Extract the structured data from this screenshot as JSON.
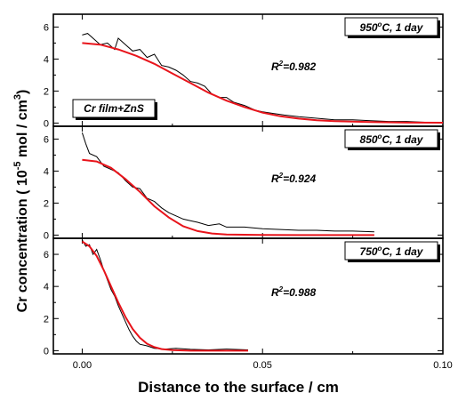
{
  "chart_data": {
    "type": "line",
    "xlabel": "Distance to the surface / cm",
    "ylabel": {
      "main": "Cr concentration  ( 10",
      "exp": "-5",
      "unit_mid": " mol / cm",
      "unit_exp": "3",
      "close": ")"
    },
    "xlim": [
      -0.008,
      0.1
    ],
    "xticks": [
      0.0,
      0.05,
      0.1
    ],
    "xtick_labels": [
      "0.00",
      "0.05",
      "0.10"
    ],
    "colors": {
      "data": "#000000",
      "fit": "#e8141b"
    },
    "panels": [
      {
        "label_main": "950",
        "label_sup": "o",
        "label_rest": "C, 1 day",
        "r2_r": "R",
        "r2_sup": "2",
        "r2_val": "=0.982",
        "note": "Cr film+ZnS",
        "ylim": [
          -0.2,
          6.8
        ],
        "yticks": [
          0,
          2,
          4,
          6
        ],
        "xmax_data": 0.1,
        "data": [
          [
            0.0,
            5.5
          ],
          [
            0.0015,
            5.6
          ],
          [
            0.003,
            5.3
          ],
          [
            0.005,
            4.9
          ],
          [
            0.007,
            5.0
          ],
          [
            0.009,
            4.6
          ],
          [
            0.01,
            5.3
          ],
          [
            0.012,
            4.9
          ],
          [
            0.014,
            4.5
          ],
          [
            0.016,
            4.6
          ],
          [
            0.018,
            4.1
          ],
          [
            0.02,
            4.3
          ],
          [
            0.022,
            3.6
          ],
          [
            0.024,
            3.5
          ],
          [
            0.026,
            3.3
          ],
          [
            0.028,
            3.0
          ],
          [
            0.03,
            2.6
          ],
          [
            0.032,
            2.5
          ],
          [
            0.034,
            2.3
          ],
          [
            0.036,
            1.8
          ],
          [
            0.038,
            1.6
          ],
          [
            0.04,
            1.6
          ],
          [
            0.042,
            1.3
          ],
          [
            0.045,
            1.1
          ],
          [
            0.048,
            0.8
          ],
          [
            0.05,
            0.7
          ],
          [
            0.053,
            0.6
          ],
          [
            0.056,
            0.5
          ],
          [
            0.06,
            0.4
          ],
          [
            0.065,
            0.3
          ],
          [
            0.07,
            0.2
          ],
          [
            0.075,
            0.2
          ],
          [
            0.08,
            0.15
          ],
          [
            0.085,
            0.1
          ],
          [
            0.09,
            0.1
          ],
          [
            0.095,
            0.05
          ],
          [
            0.1,
            0.05
          ]
        ],
        "fit": [
          [
            0.0,
            5.0
          ],
          [
            0.005,
            4.9
          ],
          [
            0.01,
            4.6
          ],
          [
            0.015,
            4.2
          ],
          [
            0.02,
            3.7
          ],
          [
            0.025,
            3.1
          ],
          [
            0.03,
            2.5
          ],
          [
            0.035,
            1.9
          ],
          [
            0.04,
            1.4
          ],
          [
            0.045,
            1.0
          ],
          [
            0.05,
            0.65
          ],
          [
            0.055,
            0.42
          ],
          [
            0.06,
            0.28
          ],
          [
            0.065,
            0.18
          ],
          [
            0.07,
            0.12
          ],
          [
            0.08,
            0.06
          ],
          [
            0.09,
            0.03
          ],
          [
            0.1,
            0.02
          ]
        ]
      },
      {
        "label_main": "850",
        "label_sup": "o",
        "label_rest": "C, 1 day",
        "r2_r": "R",
        "r2_sup": "2",
        "r2_val": "=0.924",
        "note": "",
        "ylim": [
          -0.2,
          6.8
        ],
        "yticks": [
          0,
          2,
          4,
          6
        ],
        "xmax_data": 0.081,
        "data": [
          [
            0.0,
            6.4
          ],
          [
            0.001,
            5.7
          ],
          [
            0.002,
            5.1
          ],
          [
            0.004,
            4.9
          ],
          [
            0.006,
            4.3
          ],
          [
            0.008,
            4.1
          ],
          [
            0.01,
            3.9
          ],
          [
            0.012,
            3.4
          ],
          [
            0.014,
            3.0
          ],
          [
            0.016,
            2.9
          ],
          [
            0.018,
            2.3
          ],
          [
            0.02,
            2.1
          ],
          [
            0.022,
            1.7
          ],
          [
            0.024,
            1.4
          ],
          [
            0.026,
            1.2
          ],
          [
            0.028,
            1.0
          ],
          [
            0.03,
            0.9
          ],
          [
            0.032,
            0.8
          ],
          [
            0.035,
            0.6
          ],
          [
            0.038,
            0.7
          ],
          [
            0.04,
            0.5
          ],
          [
            0.045,
            0.5
          ],
          [
            0.05,
            0.4
          ],
          [
            0.055,
            0.35
          ],
          [
            0.06,
            0.3
          ],
          [
            0.065,
            0.3
          ],
          [
            0.07,
            0.25
          ],
          [
            0.075,
            0.25
          ],
          [
            0.081,
            0.2
          ]
        ],
        "fit": [
          [
            0.0,
            4.7
          ],
          [
            0.004,
            4.6
          ],
          [
            0.008,
            4.2
          ],
          [
            0.012,
            3.5
          ],
          [
            0.016,
            2.7
          ],
          [
            0.02,
            1.8
          ],
          [
            0.024,
            1.1
          ],
          [
            0.028,
            0.55
          ],
          [
            0.032,
            0.25
          ],
          [
            0.036,
            0.1
          ],
          [
            0.04,
            0.04
          ],
          [
            0.05,
            0.01
          ],
          [
            0.06,
            0.0
          ],
          [
            0.081,
            0.0
          ]
        ]
      },
      {
        "label_main": "750",
        "label_sup": "o",
        "label_rest": "C, 1 day",
        "r2_r": "R",
        "r2_sup": "2",
        "r2_val": "=0.988",
        "note": "",
        "ylim": [
          -0.2,
          7.0
        ],
        "yticks": [
          0,
          2,
          4,
          6
        ],
        "xmax_data": 0.046,
        "data": [
          [
            0.0,
            6.9
          ],
          [
            0.001,
            6.5
          ],
          [
            0.002,
            6.6
          ],
          [
            0.003,
            6.0
          ],
          [
            0.004,
            6.3
          ],
          [
            0.005,
            5.7
          ],
          [
            0.006,
            5.0
          ],
          [
            0.007,
            4.4
          ],
          [
            0.008,
            3.8
          ],
          [
            0.009,
            3.4
          ],
          [
            0.01,
            2.8
          ],
          [
            0.011,
            2.3
          ],
          [
            0.012,
            1.8
          ],
          [
            0.013,
            1.3
          ],
          [
            0.014,
            0.9
          ],
          [
            0.015,
            0.6
          ],
          [
            0.016,
            0.4
          ],
          [
            0.018,
            0.3
          ],
          [
            0.02,
            0.15
          ],
          [
            0.023,
            0.1
          ],
          [
            0.026,
            0.15
          ],
          [
            0.03,
            0.08
          ],
          [
            0.035,
            0.05
          ],
          [
            0.04,
            0.1
          ],
          [
            0.046,
            0.05
          ]
        ],
        "fit": [
          [
            0.0,
            6.8
          ],
          [
            0.002,
            6.5
          ],
          [
            0.004,
            5.9
          ],
          [
            0.006,
            5.0
          ],
          [
            0.008,
            4.0
          ],
          [
            0.01,
            3.0
          ],
          [
            0.012,
            2.1
          ],
          [
            0.014,
            1.35
          ],
          [
            0.016,
            0.8
          ],
          [
            0.018,
            0.43
          ],
          [
            0.02,
            0.22
          ],
          [
            0.022,
            0.1
          ],
          [
            0.025,
            0.03
          ],
          [
            0.03,
            0.0
          ],
          [
            0.046,
            0.0
          ]
        ]
      }
    ]
  }
}
